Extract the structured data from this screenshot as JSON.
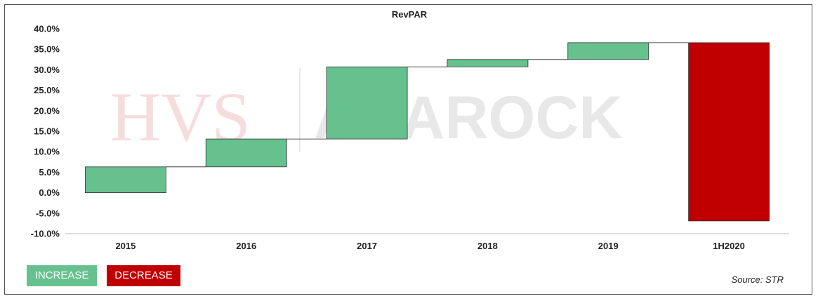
{
  "chart_data": {
    "type": "waterfall",
    "title": "RevPAR",
    "categories": [
      "2015",
      "2016",
      "2017",
      "2018",
      "2019",
      "1H2020"
    ],
    "bars": [
      {
        "category": "2015",
        "start": 0.0,
        "end": 6.3,
        "kind": "increase"
      },
      {
        "category": "2016",
        "start": 6.3,
        "end": 13.1,
        "kind": "increase"
      },
      {
        "category": "2017",
        "start": 13.1,
        "end": 30.7,
        "kind": "increase"
      },
      {
        "category": "2018",
        "start": 30.7,
        "end": 32.5,
        "kind": "increase"
      },
      {
        "category": "2019",
        "start": 32.5,
        "end": 36.6,
        "kind": "increase"
      },
      {
        "category": "1H2020",
        "start": 36.6,
        "end": -6.9,
        "kind": "decrease"
      }
    ],
    "y_ticks": [
      "40.0%",
      "35.0%",
      "30.0%",
      "25.0%",
      "20.0%",
      "15.0%",
      "10.0%",
      "5.0%",
      "0.0%",
      "-5.0%",
      "-10.0%"
    ],
    "ylim": [
      -10,
      40
    ],
    "xlabel": "",
    "ylabel": "",
    "legend_position": "bottom-left",
    "colors": {
      "increase": "#66c18f",
      "decrease": "#c00000",
      "axis": "#bbbbbb",
      "connector": "#222222"
    }
  },
  "legend": {
    "increase_label": "INCREASE",
    "decrease_label": "DECREASE"
  },
  "source": "Source: STR",
  "watermark": {
    "left": "HVS",
    "right": "ANAROCK"
  }
}
